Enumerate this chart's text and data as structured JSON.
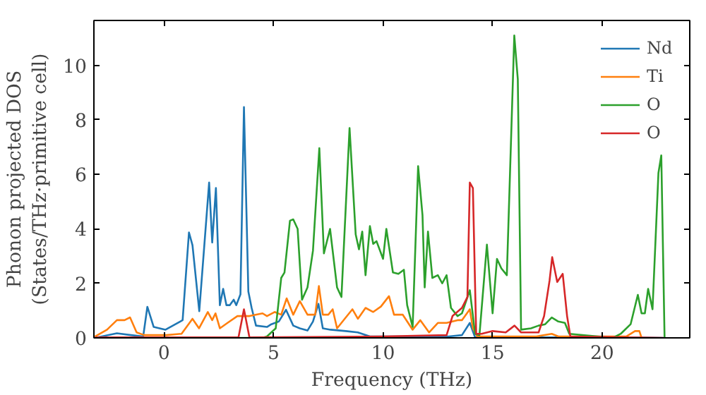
{
  "chart_data": {
    "type": "line",
    "xlabel": "Frequency (THz)",
    "ylabel": "Phonon projected DOS\n(States/THz·primitive cell)",
    "xlim": [
      -3.2,
      24
    ],
    "ylim": [
      0,
      11.65
    ],
    "xticks": [
      0,
      5,
      10,
      15,
      20
    ],
    "yticks": [
      0,
      2,
      4,
      6,
      8,
      10
    ],
    "grid": false,
    "legend": "top right",
    "line_style": "solid",
    "marker": "none",
    "series": [
      {
        "name": "Nd",
        "color": "#1f77b4",
        "x": [
          -3.15,
          -2.15,
          -1.5,
          -0.95,
          -0.76,
          -0.47,
          0.07,
          0.74,
          0.85,
          1.14,
          1.3,
          1.61,
          2.06,
          2.2,
          2.37,
          2.55,
          2.7,
          2.85,
          3.0,
          3.18,
          3.3,
          3.49,
          3.65,
          3.85,
          4.0,
          4.2,
          4.7,
          4.9,
          5.24,
          5.57,
          5.9,
          6.2,
          6.55,
          6.8,
          7.05,
          7.25,
          7.6,
          8.3,
          8.85,
          9.4,
          10,
          11,
          12,
          13,
          13.6,
          13.96,
          14.2,
          17,
          19,
          21,
          22.8
        ],
        "values": [
          0,
          0.17,
          0.1,
          0.05,
          1.14,
          0.4,
          0.3,
          0.6,
          0.65,
          3.87,
          3.4,
          0.98,
          5.7,
          3.5,
          5.5,
          1.2,
          1.8,
          1.2,
          1.2,
          1.4,
          1.2,
          1.6,
          8.47,
          1.7,
          1.1,
          0.45,
          0.4,
          0.5,
          0.6,
          1.03,
          0.45,
          0.35,
          0.27,
          0.6,
          1.25,
          0.35,
          0.3,
          0.25,
          0.2,
          0.05,
          0.05,
          0.05,
          0.05,
          0.05,
          0.1,
          0.55,
          0.02,
          0.02,
          0.02,
          0.02,
          0
        ]
      },
      {
        "name": "Ti",
        "color": "#ff7f0e",
        "x": [
          -3.15,
          -2.6,
          -2.15,
          -1.8,
          -1.55,
          -1.25,
          -0.9,
          0.1,
          0.8,
          1.3,
          1.6,
          2.0,
          2.2,
          2.35,
          2.55,
          2.9,
          3.35,
          3.9,
          4.5,
          4.7,
          5.05,
          5.35,
          5.6,
          5.9,
          6.2,
          6.55,
          6.9,
          7.07,
          7.25,
          7.5,
          7.7,
          7.9,
          8.3,
          8.6,
          8.85,
          9.2,
          9.55,
          9.9,
          10.27,
          10.5,
          10.9,
          11.35,
          11.7,
          12.1,
          12.5,
          12.9,
          13.4,
          13.6,
          13.96,
          14.1,
          14.3,
          15,
          17,
          17.7,
          18,
          21.1,
          21.5,
          21.7,
          21.8
        ],
        "values": [
          0.05,
          0.3,
          0.65,
          0.65,
          0.75,
          0.2,
          0.1,
          0.1,
          0.15,
          0.7,
          0.35,
          0.95,
          0.65,
          0.9,
          0.35,
          0.55,
          0.8,
          0.8,
          0.9,
          0.8,
          0.95,
          0.85,
          1.45,
          0.85,
          1.35,
          0.85,
          0.85,
          1.9,
          0.85,
          0.85,
          1.05,
          0.35,
          0.75,
          1.05,
          0.7,
          1.1,
          0.95,
          1.15,
          1.53,
          0.85,
          0.85,
          0.3,
          0.65,
          0.2,
          0.55,
          0.55,
          0.65,
          0.65,
          1.05,
          0.35,
          0.05,
          0.05,
          0.05,
          0.15,
          0.05,
          0.05,
          0.25,
          0.25,
          0
        ]
      },
      {
        "name": "O",
        "color": "#2ca02c",
        "x": [
          -3.15,
          4.5,
          4.7,
          5.1,
          5.35,
          5.5,
          5.75,
          5.9,
          6.1,
          6.3,
          6.55,
          6.8,
          7.09,
          7.3,
          7.58,
          7.9,
          8.1,
          8.47,
          8.75,
          8.9,
          9.05,
          9.2,
          9.4,
          9.55,
          9.7,
          10.0,
          10.15,
          10.45,
          10.7,
          10.95,
          11.1,
          11.35,
          11.6,
          11.8,
          11.9,
          12.05,
          12.25,
          12.5,
          12.7,
          12.9,
          13.1,
          13.4,
          13.6,
          13.96,
          14.2,
          14.4,
          14.74,
          15.0,
          15.2,
          15.4,
          15.65,
          15.99,
          16.15,
          16.3,
          16.75,
          17.1,
          17.4,
          17.7,
          18.0,
          18.3,
          18.5,
          20.5,
          20.85,
          21.3,
          21.63,
          21.8,
          21.95,
          22.1,
          22.3,
          22.57,
          22.7,
          22.85
        ],
        "values": [
          0,
          0,
          0.05,
          0.35,
          2.2,
          2.4,
          4.3,
          4.35,
          4.0,
          1.4,
          1.85,
          3.2,
          6.96,
          3.1,
          4.0,
          1.85,
          1.5,
          7.7,
          3.8,
          3.25,
          3.9,
          2.3,
          4.1,
          3.45,
          3.55,
          2.9,
          4.0,
          2.4,
          2.35,
          2.5,
          1.2,
          0.4,
          6.3,
          4.5,
          1.85,
          3.9,
          2.2,
          2.3,
          2.0,
          2.3,
          1.1,
          0.8,
          0.9,
          1.75,
          0.15,
          0.1,
          3.42,
          0.9,
          2.9,
          2.55,
          2.3,
          11.1,
          9.5,
          0.3,
          0.35,
          0.45,
          0.5,
          0.75,
          0.6,
          0.55,
          0.15,
          0,
          0.15,
          0.5,
          1.58,
          0.9,
          0.9,
          1.8,
          1.05,
          6.05,
          6.7,
          0
        ]
      },
      {
        "name": "O",
        "color": "#d62728",
        "x": [
          -3.15,
          3.4,
          3.65,
          3.9,
          10,
          12.9,
          13.17,
          13.6,
          13.85,
          13.96,
          14.1,
          14.25,
          14.5,
          15,
          15.6,
          16,
          16.3,
          17.1,
          17.35,
          17.6,
          17.72,
          17.95,
          18.2,
          18.4,
          18.55,
          22.8
        ],
        "values": [
          0.02,
          0.02,
          1.05,
          0.02,
          0.05,
          0.1,
          0.8,
          1.1,
          1.5,
          5.7,
          5.5,
          0.15,
          0.15,
          0.25,
          0.2,
          0.45,
          0.2,
          0.2,
          0.8,
          2.1,
          2.96,
          2.05,
          2.35,
          0.8,
          0.05,
          0
        ]
      }
    ]
  }
}
